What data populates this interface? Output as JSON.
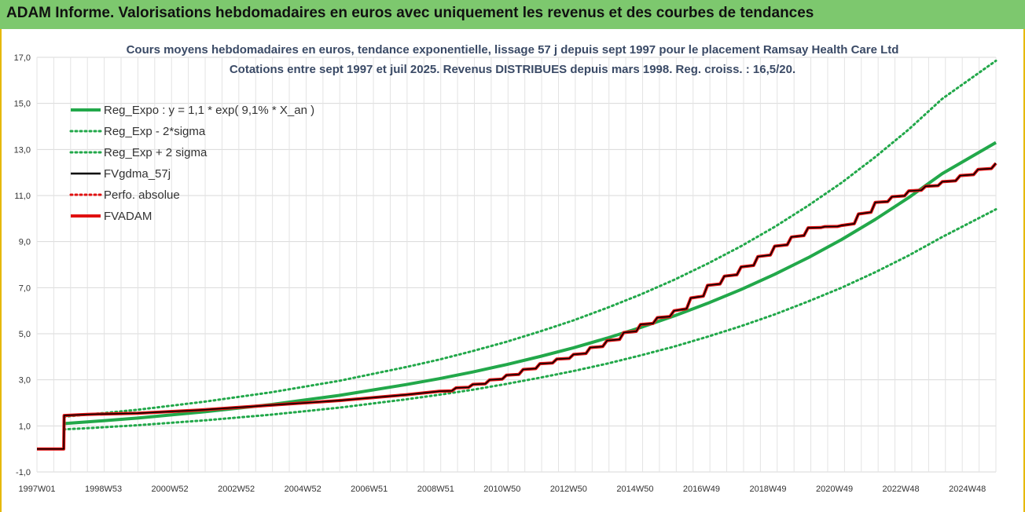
{
  "banner": {
    "title": "ADAM Informe. Valorisations hebdomadaires en euros avec uniquement les revenus et des courbes de tendances",
    "color": "#7dc86e"
  },
  "chart_data": {
    "type": "line",
    "title": "Cours moyens hebdomadaires en euros, tendance exponentielle, lissage 57 j depuis sept 1997 pour le placement Ramsay Health Care Ltd",
    "subtitle": "Cotations entre sept 1997 et juil 2025. Revenus DISTRIBUES depuis mars 1998. Reg. croiss. : 16,5/20.",
    "xlabel": "",
    "ylabel": "",
    "ylim": [
      -1,
      17
    ],
    "yticks": [
      "17,0",
      "15,0",
      "13,0",
      "11,0",
      "9,0",
      "7,0",
      "5,0",
      "3,0",
      "1,0",
      "-1,0"
    ],
    "xlim": [
      1997.0,
      2025.6
    ],
    "xtick_labels": [
      "1997W01",
      "1998W53",
      "2000W52",
      "2002W52",
      "2004W52",
      "2006W51",
      "2008W51",
      "2010W50",
      "2012W50",
      "2014W50",
      "2016W49",
      "2018W49",
      "2020W49",
      "2022W48",
      "2024W48"
    ],
    "grid": true,
    "legend_position": "top-left",
    "legend": [
      {
        "name": "Reg_Expo : y = 1,1 * exp( 9,1% *  X_an )",
        "color": "#22a84a",
        "style": "solid"
      },
      {
        "name": "Reg_Exp - 2*sigma",
        "color": "#22a84a",
        "style": "dotted"
      },
      {
        "name": "Reg_Exp + 2 sigma",
        "color": "#22a84a",
        "style": "dotted"
      },
      {
        "name": "FVgdma_57j",
        "color": "#000000",
        "style": "solid"
      },
      {
        "name": "Perfo. absolue",
        "color": "#e01010",
        "style": "dotted"
      },
      {
        "name": "FVADAM",
        "color": "#e01010",
        "style": "solid"
      }
    ],
    "x": [
      1997.0,
      1997.8,
      1997.81,
      1998.5,
      2000.0,
      2002.0,
      2004.0,
      2006.0,
      2008.0,
      2009.0,
      2010.0,
      2011.0,
      2012.0,
      2013.0,
      2014.0,
      2015.0,
      2016.0,
      2017.0,
      2018.0,
      2019.0,
      2020.0,
      2021.0,
      2022.0,
      2023.0,
      2024.0,
      2025.6
    ],
    "series": [
      {
        "name": "Reg_Expo : y = 1,1 * exp( 9,1% *  X_an )",
        "values": [
          null,
          1.1,
          1.1,
          1.17,
          1.34,
          1.61,
          1.93,
          2.32,
          2.79,
          3.05,
          3.34,
          3.66,
          4.01,
          4.39,
          4.81,
          5.27,
          5.77,
          6.32,
          6.92,
          7.58,
          8.3,
          9.09,
          9.96,
          10.91,
          11.95,
          13.3
        ]
      },
      {
        "name": "Reg_Exp - 2*sigma",
        "values": [
          null,
          0.85,
          0.85,
          0.9,
          1.03,
          1.24,
          1.49,
          1.79,
          2.15,
          2.35,
          2.57,
          2.82,
          3.09,
          3.38,
          3.7,
          4.06,
          4.44,
          4.87,
          5.33,
          5.84,
          6.4,
          7.0,
          7.67,
          8.4,
          9.2,
          10.4
        ]
      },
      {
        "name": "Reg_Exp + 2 sigma",
        "values": [
          null,
          1.4,
          1.4,
          1.49,
          1.7,
          2.05,
          2.46,
          2.95,
          3.55,
          3.88,
          4.25,
          4.65,
          5.1,
          5.58,
          6.12,
          6.7,
          7.34,
          8.04,
          8.8,
          9.64,
          10.56,
          11.56,
          12.67,
          13.87,
          15.2,
          16.85
        ]
      },
      {
        "name": "FVgdma_57j",
        "values": [
          0.0,
          0.0,
          1.45,
          1.5,
          1.55,
          1.7,
          1.9,
          2.1,
          2.35,
          2.5,
          2.8,
          3.2,
          3.7,
          4.1,
          4.7,
          5.4,
          6.0,
          7.1,
          7.9,
          8.8,
          9.6,
          9.7,
          10.7,
          11.2,
          11.6,
          12.4
        ]
      },
      {
        "name": "FVADAM",
        "values": [
          0.0,
          0.0,
          1.45,
          1.5,
          1.55,
          1.7,
          1.9,
          2.1,
          2.35,
          2.5,
          2.8,
          3.2,
          3.7,
          4.1,
          4.7,
          5.4,
          6.0,
          7.1,
          7.9,
          8.8,
          9.6,
          9.7,
          10.7,
          11.2,
          11.6,
          12.4
        ]
      }
    ]
  }
}
